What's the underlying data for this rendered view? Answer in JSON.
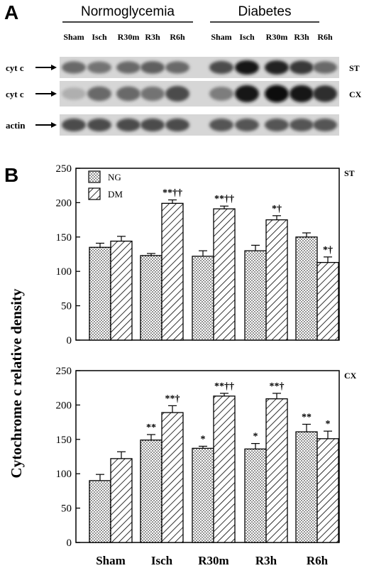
{
  "panel_a": {
    "label": "A",
    "groups": [
      "Normoglycemia",
      "Diabetes"
    ],
    "lanes": [
      "Sham",
      "Isch",
      "R30m",
      "R3h",
      "R6h",
      "Sham",
      "Isch",
      "R30m",
      "R3h",
      "R6h"
    ],
    "rows": [
      {
        "label": "cyt c",
        "tag": "ST",
        "intensity": [
          0.55,
          0.5,
          0.55,
          0.6,
          0.55,
          0.7,
          0.95,
          0.9,
          0.8,
          0.55
        ]
      },
      {
        "label": "cyt c",
        "tag": "CX",
        "intensity": [
          0.2,
          0.55,
          0.55,
          0.5,
          0.7,
          0.45,
          0.95,
          1.0,
          0.95,
          0.85
        ]
      },
      {
        "label": "actin",
        "tag": "",
        "intensity": [
          0.7,
          0.7,
          0.7,
          0.7,
          0.7,
          0.65,
          0.65,
          0.65,
          0.65,
          0.65
        ]
      }
    ]
  },
  "panel_b": {
    "label": "B",
    "ylabel": "Cytochrome c relative density",
    "legend": [
      "NG",
      "DM"
    ]
  },
  "chart_data": [
    {
      "type": "bar",
      "tag": "ST",
      "categories": [
        "Sham",
        "Isch",
        "R30m",
        "R3h",
        "R6h"
      ],
      "ylim": [
        0,
        250
      ],
      "yticks": [
        0,
        50,
        100,
        150,
        200,
        250
      ],
      "series": [
        {
          "name": "NG",
          "values": [
            135,
            123,
            122,
            130,
            150
          ],
          "errors": [
            6,
            3,
            8,
            8,
            6
          ],
          "marks": [
            "",
            "",
            "",
            "",
            ""
          ]
        },
        {
          "name": "DM",
          "values": [
            144,
            199,
            191,
            175,
            113
          ],
          "errors": [
            7,
            5,
            4,
            6,
            8
          ],
          "marks": [
            "",
            "**††",
            "**††",
            "*†",
            "*†"
          ]
        }
      ]
    },
    {
      "type": "bar",
      "tag": "CX",
      "categories": [
        "Sham",
        "Isch",
        "R30m",
        "R3h",
        "R6h"
      ],
      "ylim": [
        0,
        250
      ],
      "yticks": [
        0,
        50,
        100,
        150,
        200,
        250
      ],
      "series": [
        {
          "name": "NG",
          "values": [
            90,
            149,
            137,
            136,
            161
          ],
          "errors": [
            9,
            8,
            3,
            8,
            11
          ],
          "marks": [
            "",
            "**",
            "*",
            "*",
            "**"
          ]
        },
        {
          "name": "DM",
          "values": [
            122,
            189,
            213,
            209,
            151
          ],
          "errors": [
            10,
            10,
            4,
            8,
            11
          ],
          "marks": [
            "",
            "**†",
            "**††",
            "**†",
            "*"
          ]
        }
      ]
    }
  ]
}
